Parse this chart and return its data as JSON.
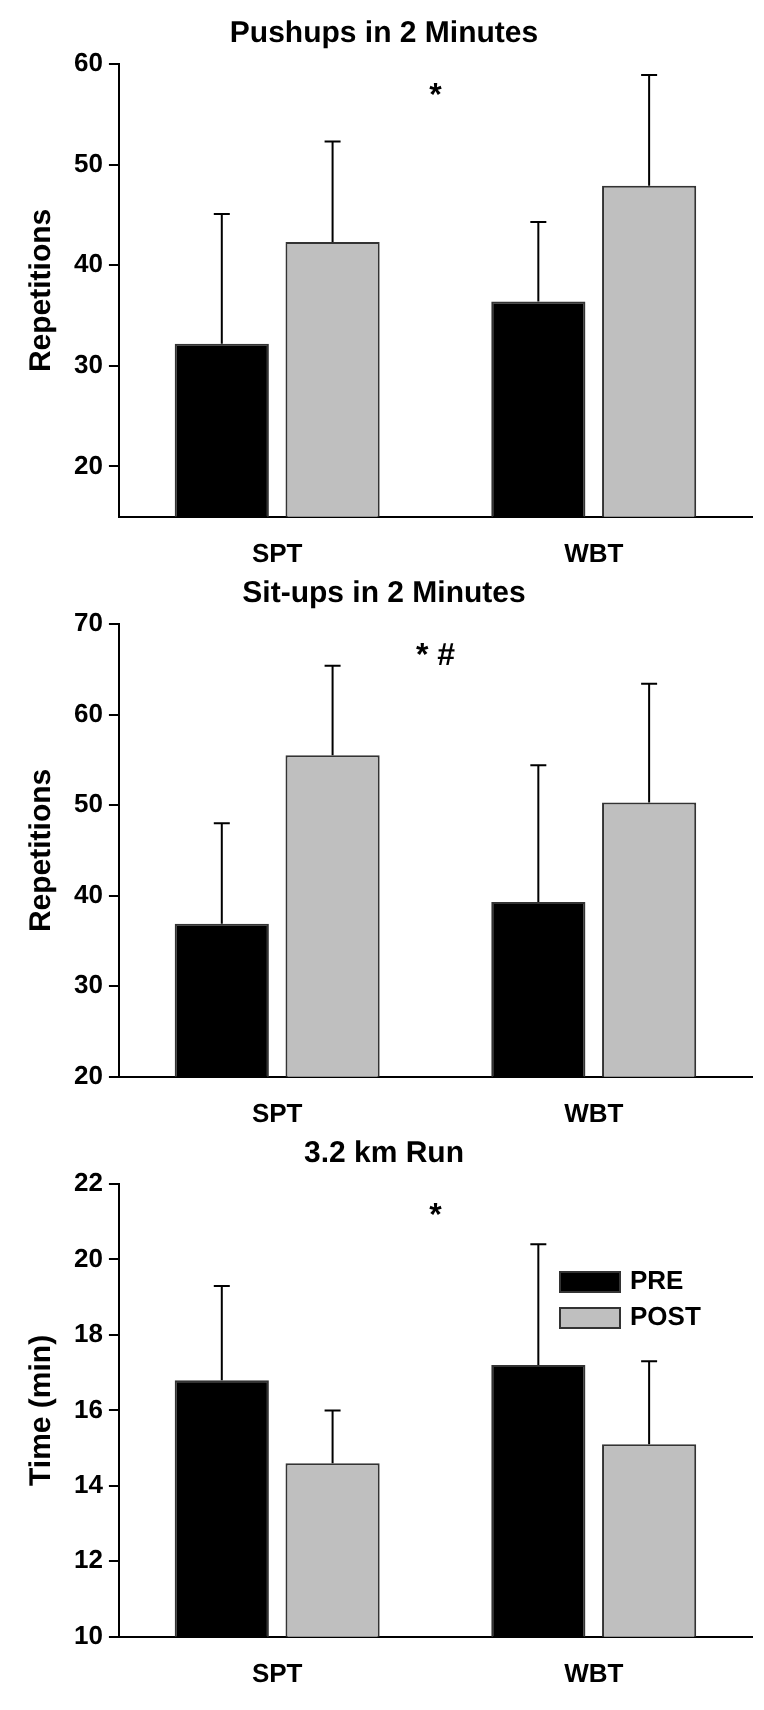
{
  "chart_data": [
    {
      "type": "bar",
      "title": "Pushups in 2 Minutes",
      "ylabel": "Repetitions",
      "categories": [
        "SPT",
        "WBT"
      ],
      "series": [
        {
          "color": "#000000",
          "values": [
            32.2,
            36.4
          ],
          "errors": [
            [
              32.2,
              45.1
            ],
            [
              36.4,
              44.3
            ]
          ]
        },
        {
          "color": "#bfbfbf",
          "values": [
            42.3,
            47.9
          ],
          "errors": [
            [
              42.3,
              52.3
            ],
            [
              47.9,
              58.9
            ]
          ]
        }
      ],
      "ylim": [
        15,
        60
      ],
      "yticks": [
        20,
        30,
        40,
        50,
        60
      ],
      "grid": false,
      "legend": false,
      "annotations": [
        "*"
      ]
    },
    {
      "type": "bar",
      "title": "Sit-ups in 2 Minutes",
      "ylabel": "Repetitions",
      "categories": [
        "SPT",
        "WBT"
      ],
      "series": [
        {
          "color": "#000000",
          "values": [
            36.9,
            39.3
          ],
          "errors": [
            [
              36.9,
              48.0
            ],
            [
              39.3,
              54.4
            ]
          ]
        },
        {
          "color": "#bfbfbf",
          "values": [
            55.5,
            50.3
          ],
          "errors": [
            [
              55.5,
              65.4
            ],
            [
              50.3,
              63.4
            ]
          ]
        }
      ],
      "ylim": [
        20,
        70
      ],
      "yticks": [
        20,
        30,
        40,
        50,
        60,
        70
      ],
      "grid": false,
      "legend": false,
      "annotations": [
        "* #"
      ]
    },
    {
      "type": "bar",
      "title": "3.2 km Run",
      "ylabel": "Time (min)",
      "categories": [
        "SPT",
        "WBT"
      ],
      "series": [
        {
          "name": "PRE",
          "color": "#000000",
          "values": [
            16.8,
            17.2
          ],
          "errors": [
            [
              16.8,
              19.3
            ],
            [
              17.2,
              20.4
            ]
          ]
        },
        {
          "name": "POST",
          "color": "#bfbfbf",
          "values": [
            14.6,
            15.1
          ],
          "errors": [
            [
              14.6,
              16.0
            ],
            [
              15.1,
              17.3
            ]
          ]
        }
      ],
      "ylim": [
        10,
        22
      ],
      "yticks": [
        10,
        12,
        14,
        16,
        18,
        20,
        22
      ],
      "grid": false,
      "legend": "top right",
      "annotations": [
        "*"
      ]
    }
  ]
}
